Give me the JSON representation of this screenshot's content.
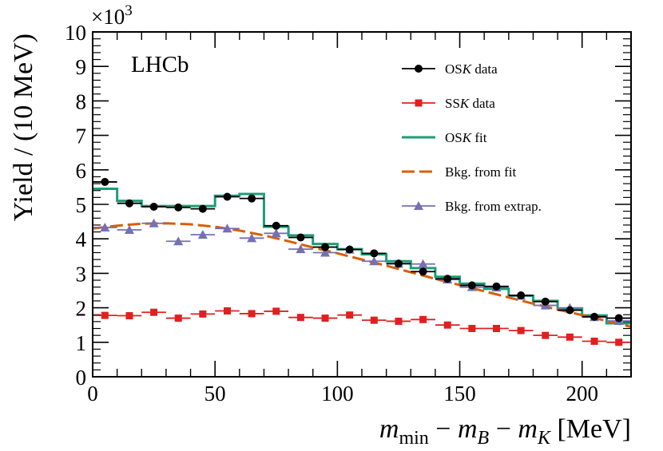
{
  "chart_data": {
    "type": "scatter",
    "title": "",
    "brand_label": "LHCb",
    "xlabel": "m_min − m_B − m_K [MeV]",
    "xlabel_parts": {
      "m": "m",
      "min_sub": "min",
      "minus": " − ",
      "B_sub": "B",
      "K_sub": "K",
      "unit": " [MeV]"
    },
    "ylabel": "Yield / (10 MeV)",
    "y_multiplier": "×10",
    "y_multiplier_exp": "3",
    "xlim": [
      0,
      220
    ],
    "ylim": [
      0,
      10
    ],
    "x_ticks": [
      0,
      50,
      100,
      150,
      200
    ],
    "x_tick_labels": [
      "0",
      "50",
      "100",
      "150",
      "200"
    ],
    "y_ticks": [
      0,
      1,
      2,
      3,
      4,
      5,
      6,
      7,
      8,
      9,
      10
    ],
    "y_tick_labels": [
      "0",
      "1",
      "2",
      "3",
      "4",
      "5",
      "6",
      "7",
      "8",
      "9",
      "10"
    ],
    "x": [
      5,
      15,
      25,
      35,
      45,
      55,
      65,
      75,
      85,
      95,
      105,
      115,
      125,
      135,
      145,
      155,
      165,
      175,
      185,
      195,
      205,
      215
    ],
    "bin_half_width": 5,
    "series": [
      {
        "name": "OSK data",
        "legend_parts": {
          "pre": "OS",
          "italic": "K",
          "post": " data"
        },
        "style": "points-circle",
        "color": "#000000",
        "values": [
          5.65,
          5.03,
          4.93,
          4.91,
          4.87,
          5.22,
          5.17,
          4.38,
          4.04,
          3.76,
          3.69,
          3.58,
          3.28,
          3.05,
          2.84,
          2.65,
          2.62,
          2.36,
          2.18,
          1.93,
          1.74,
          1.7
        ]
      },
      {
        "name": "SSK data",
        "legend_parts": {
          "pre": "SS",
          "italic": "K",
          "post": " data"
        },
        "style": "points-square",
        "color": "#e02020",
        "values": [
          1.78,
          1.77,
          1.87,
          1.7,
          1.82,
          1.91,
          1.83,
          1.9,
          1.72,
          1.7,
          1.79,
          1.64,
          1.61,
          1.66,
          1.5,
          1.4,
          1.4,
          1.34,
          1.2,
          1.15,
          1.03,
          1.0
        ]
      },
      {
        "name": "OSK fit",
        "legend_parts": {
          "pre": "OS",
          "italic": "K",
          "post": " fit"
        },
        "style": "step",
        "color": "#1b9e77",
        "values": [
          5.45,
          5.1,
          4.95,
          4.95,
          4.95,
          5.25,
          5.3,
          4.35,
          4.1,
          3.85,
          3.7,
          3.55,
          3.35,
          3.15,
          2.9,
          2.7,
          2.55,
          2.35,
          2.2,
          1.98,
          1.78,
          1.55
        ]
      },
      {
        "name": "Bkg. from fit",
        "legend_parts": {
          "pre": "Bkg. from fit",
          "italic": "",
          "post": ""
        },
        "style": "dashed-curve",
        "color": "#d95f02",
        "curve_x": [
          0,
          10,
          20,
          30,
          40,
          50,
          60,
          70,
          80,
          90,
          100,
          110,
          120,
          130,
          140,
          150,
          160,
          170,
          180,
          190,
          200,
          210,
          220
        ],
        "curve_y": [
          4.3,
          4.38,
          4.44,
          4.45,
          4.42,
          4.35,
          4.24,
          4.1,
          3.93,
          3.75,
          3.58,
          3.4,
          3.22,
          3.03,
          2.84,
          2.66,
          2.48,
          2.3,
          2.12,
          1.95,
          1.79,
          1.62,
          1.45
        ]
      },
      {
        "name": "Bkg. from extrap.",
        "legend_parts": {
          "pre": "Bkg. from extrap.",
          "italic": "",
          "post": ""
        },
        "style": "points-triangle",
        "color": "#7570b3",
        "values": [
          4.33,
          4.26,
          4.45,
          3.93,
          4.12,
          4.3,
          4.02,
          4.16,
          3.7,
          3.6,
          3.69,
          3.35,
          3.28,
          3.27,
          2.82,
          2.6,
          2.59,
          2.35,
          2.07,
          2.0,
          1.73,
          1.62
        ]
      }
    ],
    "legend_position": "top-right",
    "grid": false
  }
}
